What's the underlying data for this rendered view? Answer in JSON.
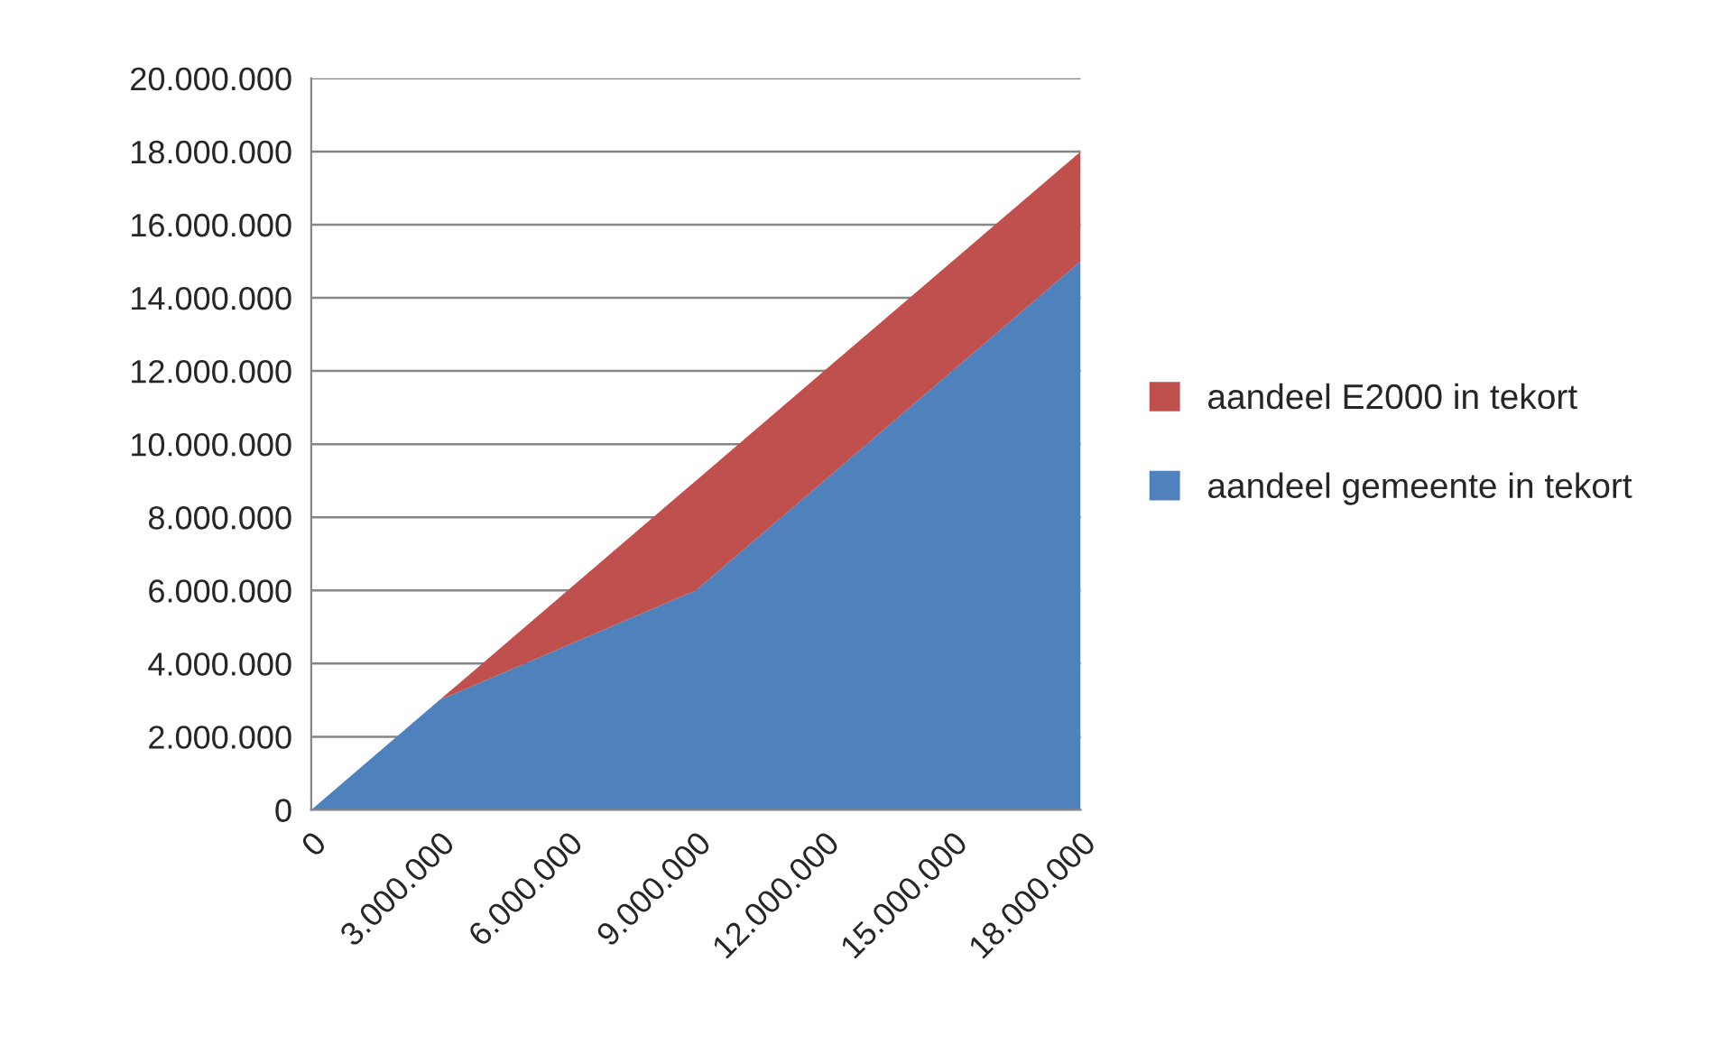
{
  "chart_data": {
    "type": "area",
    "stacked": true,
    "categories": [
      "0",
      "3.000.000",
      "6.000.000",
      "9.000.000",
      "12.000.000",
      "15.000.000",
      "18.000.000"
    ],
    "series": [
      {
        "name": "aandeel gemeente in tekort",
        "color": "#4f81bd",
        "values": [
          0,
          3000000,
          4500000,
          6000000,
          9000000,
          12000000,
          15000000
        ]
      },
      {
        "name": "aandeel E2000 in tekort",
        "color": "#c0504d",
        "values": [
          0,
          0,
          1500000,
          3000000,
          3000000,
          3000000,
          3000000
        ]
      }
    ],
    "ylim": [
      0,
      20000000
    ],
    "yticks": [
      {
        "value": 0,
        "label": "0"
      },
      {
        "value": 2000000,
        "label": "2.000.000"
      },
      {
        "value": 4000000,
        "label": "4.000.000"
      },
      {
        "value": 6000000,
        "label": "6.000.000"
      },
      {
        "value": 8000000,
        "label": "8.000.000"
      },
      {
        "value": 10000000,
        "label": "10.000.000"
      },
      {
        "value": 12000000,
        "label": "12.000.000"
      },
      {
        "value": 14000000,
        "label": "14.000.000"
      },
      {
        "value": 16000000,
        "label": "16.000.000"
      },
      {
        "value": 18000000,
        "label": "18.000.000"
      },
      {
        "value": 20000000,
        "label": "20.000.000"
      }
    ],
    "grid": "y",
    "legend": "right"
  }
}
